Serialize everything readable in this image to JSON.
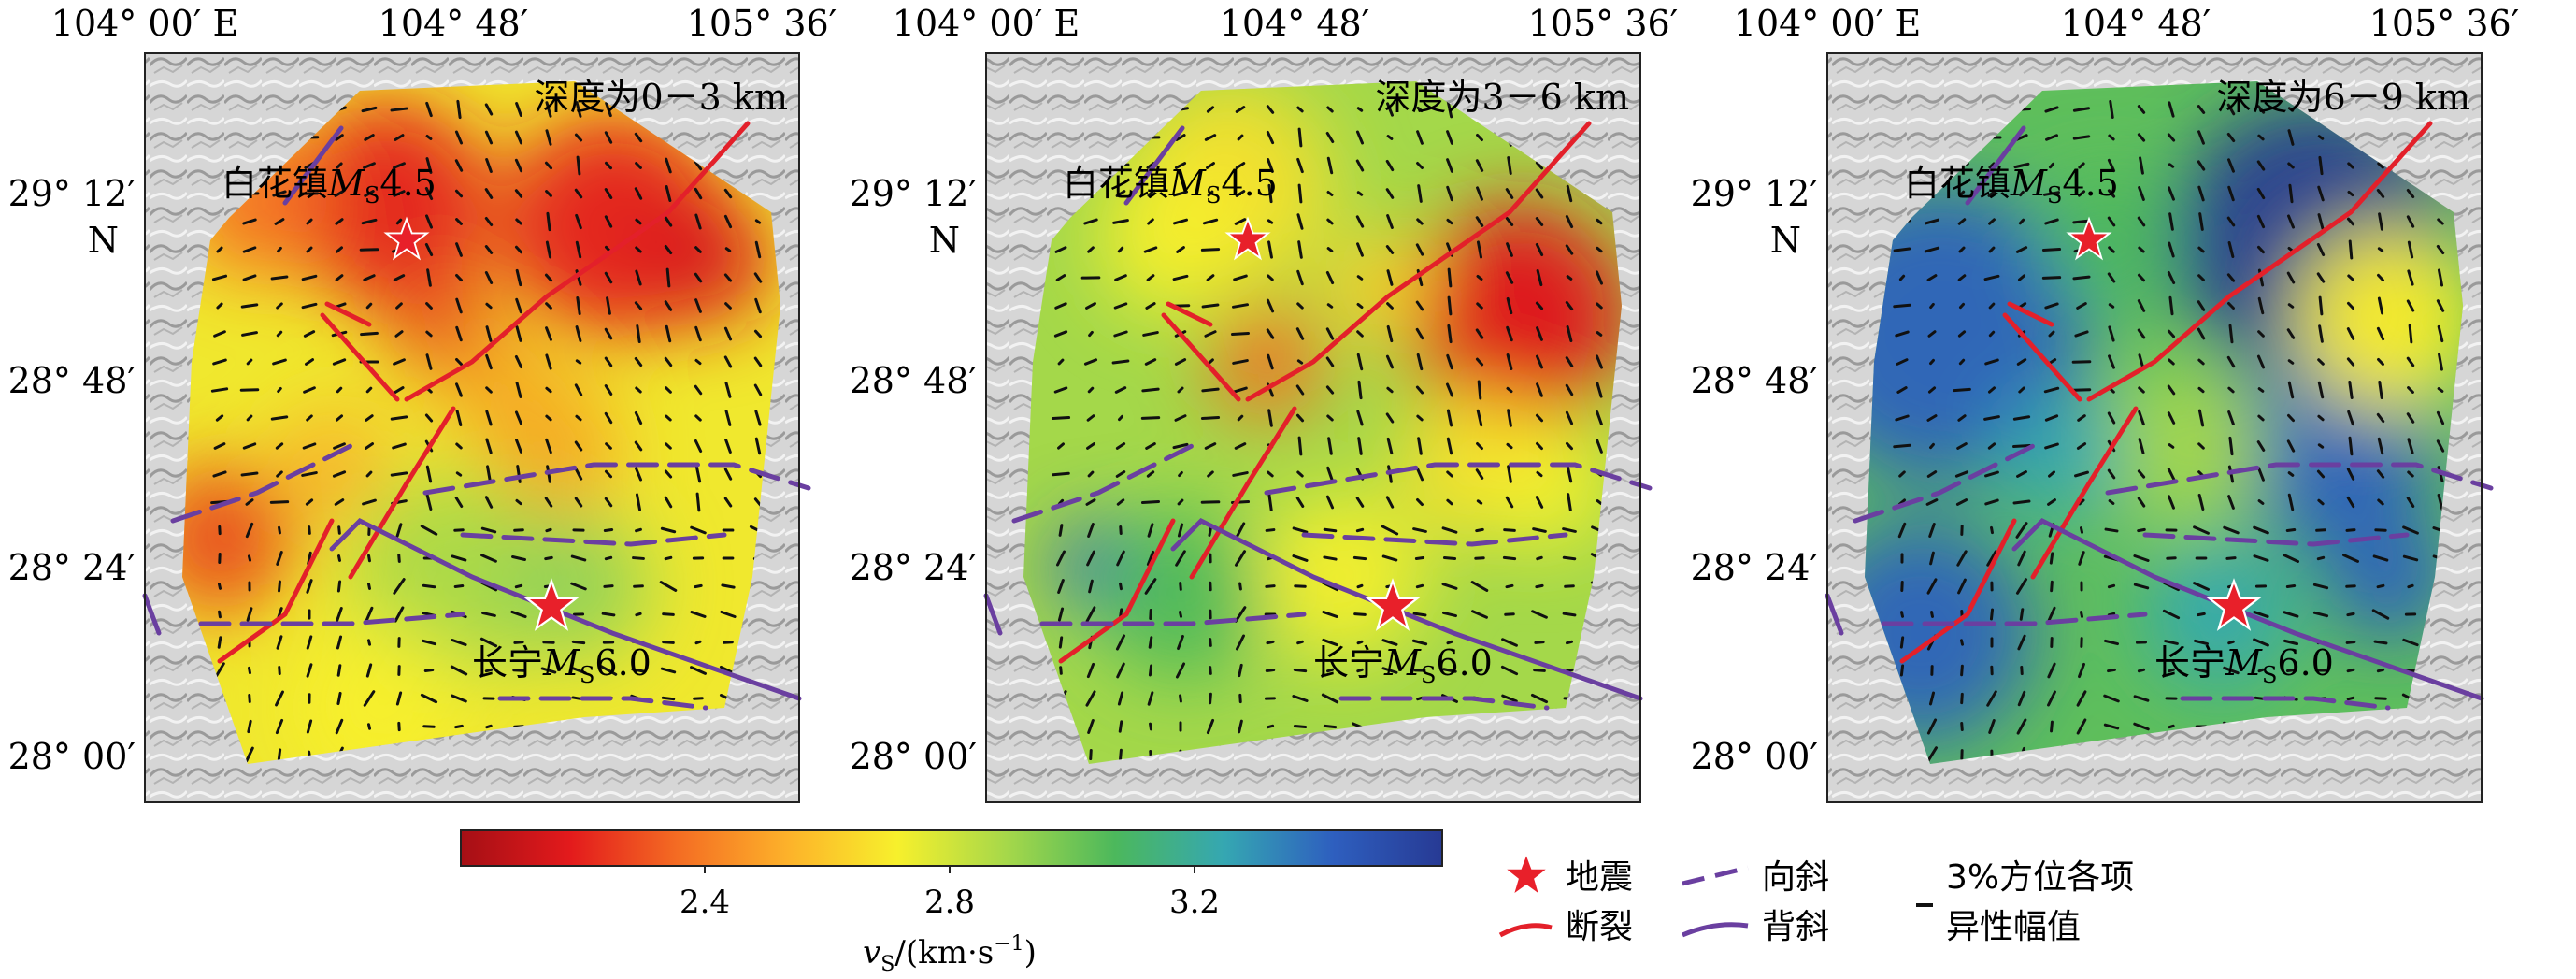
{
  "axes": {
    "lon_labels": [
      "104° 00′ E",
      "104° 48′",
      "105° 36′"
    ],
    "lat_labels": [
      "29° 12′",
      "28° 48′",
      "28° 24′",
      "28° 00′"
    ],
    "lat_unit": "N"
  },
  "panels": [
    {
      "id": "p1",
      "depth_label": "深度为0－3 km",
      "scheme": "shallow"
    },
    {
      "id": "p2",
      "depth_label": "深度为3－6 km",
      "scheme": "middle"
    },
    {
      "id": "p3",
      "depth_label": "深度为6－9 km",
      "scheme": "deep"
    }
  ],
  "places": {
    "baihua": {
      "name": "白花镇",
      "mag": "M",
      "sub": "S",
      "value": "4.5"
    },
    "changning": {
      "name": "长宁",
      "mag": "M",
      "sub": "S",
      "value": "6.0"
    }
  },
  "colorbar": {
    "ticks": [
      "2.4",
      "2.8",
      "3.2"
    ],
    "label": "v",
    "label_sub": "S",
    "label_unit": "/(km·s",
    "label_sup": "−1",
    "label_end": ")",
    "colors": [
      "#a50f15",
      "#e31a1c",
      "#f46d23",
      "#fdb22a",
      "#f7f02c",
      "#a6d84a",
      "#4cb85c",
      "#35a7b2",
      "#2e5fbf",
      "#273a94"
    ]
  },
  "legend": {
    "earthquake": "地震",
    "fault": "断裂",
    "syncline": "向斜",
    "anticline": "背斜",
    "anisotropy_line1": "3%方位各项",
    "anisotropy_line2": "异性幅值"
  },
  "colors": {
    "fault": "#e3202a",
    "fold": "#6a3fa0",
    "star": "#e8202a",
    "bar": "#111111"
  }
}
